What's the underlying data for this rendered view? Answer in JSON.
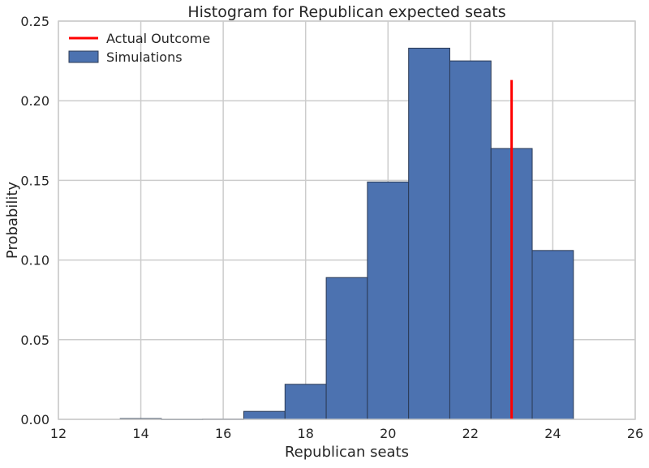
{
  "chart_data": {
    "type": "bar",
    "title": "Histogram for Republican expected seats",
    "xlabel": "Republican seats",
    "ylabel": "Probability",
    "xlim": [
      12,
      26
    ],
    "ylim": [
      0,
      0.25
    ],
    "xticks": [
      "12",
      "14",
      "16",
      "18",
      "20",
      "22",
      "24",
      "26"
    ],
    "yticks": [
      "0.00",
      "0.05",
      "0.10",
      "0.15",
      "0.20",
      "0.25"
    ],
    "grid": true,
    "legend_position": "top-left",
    "bar_color": "#4c72b0",
    "bins": [
      {
        "x0": 13.5,
        "x1": 14.5,
        "value": 0.0005
      },
      {
        "x0": 14.5,
        "x1": 15.5,
        "value": 0.0001
      },
      {
        "x0": 15.5,
        "x1": 16.5,
        "value": 0.0002
      },
      {
        "x0": 16.5,
        "x1": 17.5,
        "value": 0.005
      },
      {
        "x0": 17.5,
        "x1": 18.5,
        "value": 0.022
      },
      {
        "x0": 18.5,
        "x1": 19.5,
        "value": 0.089
      },
      {
        "x0": 19.5,
        "x1": 20.5,
        "value": 0.149
      },
      {
        "x0": 20.5,
        "x1": 21.5,
        "value": 0.233
      },
      {
        "x0": 21.5,
        "x1": 22.5,
        "value": 0.225
      },
      {
        "x0": 22.5,
        "x1": 23.5,
        "value": 0.17
      },
      {
        "x0": 23.5,
        "x1": 24.5,
        "value": 0.106
      }
    ],
    "series": [
      {
        "name": "Actual Outcome",
        "type": "vline",
        "x": 23,
        "y_range": [
          0,
          0.213
        ],
        "color": "#ff0000"
      },
      {
        "name": "Simulations",
        "type": "histogram",
        "color": "#4c72b0"
      }
    ]
  }
}
